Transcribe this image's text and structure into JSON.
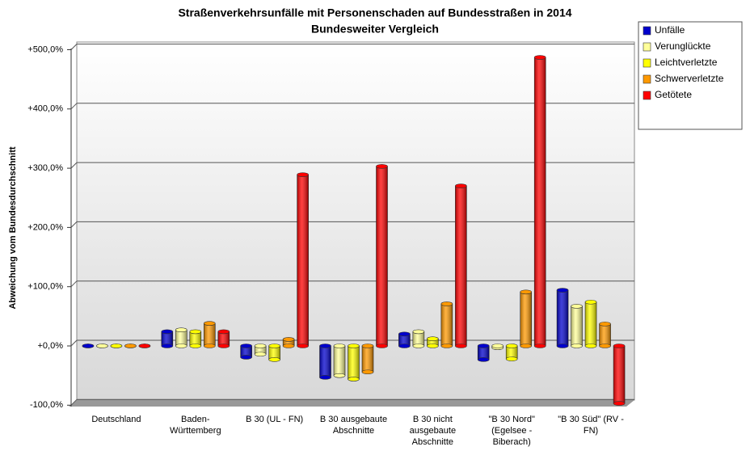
{
  "chart_data": {
    "type": "bar",
    "title": "Straßenverkehrsunfälle mit Personenschaden auf Bundesstraßen in 2014",
    "subtitle": "Bundesweiter Vergleich",
    "y_label": "Abweichung vom Bundesdurchschnitt",
    "categories": [
      "Deutschland",
      "Baden-\nWürttemberg",
      "B 30 (UL - FN)",
      "B 30 ausgebaute\nAbschnitte",
      "B 30 nicht\nausgebaute\nAbschnitte",
      "\"B 30 Nord\"\n(Egelsee -\nBiberach)",
      "\"B 30 Süd\" (RV -\nFN)"
    ],
    "series": [
      {
        "name": "Unfälle",
        "color": "#0000cc",
        "values": [
          0,
          24,
          -19,
          -53,
          20,
          -23,
          94
        ]
      },
      {
        "name": "Verunglückte",
        "color": "#ffff99",
        "values": [
          0,
          27,
          -14,
          -50,
          24,
          -3,
          67
        ]
      },
      {
        "name": "Leichtverletzte",
        "color": "#ffff00",
        "values": [
          0,
          24,
          -23,
          -56,
          12,
          -22,
          74
        ]
      },
      {
        "name": "Schwerverletzte",
        "color": "#ff9900",
        "values": [
          0,
          38,
          11,
          -44,
          71,
          91,
          37
        ]
      },
      {
        "name": "Getötete",
        "color": "#ff0000",
        "values": [
          0,
          24,
          289,
          303,
          270,
          487,
          -97
        ]
      }
    ],
    "ylim": [
      -100,
      500
    ],
    "yticks": [
      {
        "value": -100,
        "label": "-100,0%"
      },
      {
        "value": 0,
        "label": "+0,0%"
      },
      {
        "value": 100,
        "label": "+100,0%"
      },
      {
        "value": 200,
        "label": "+200,0%"
      },
      {
        "value": 300,
        "label": "+300,0%"
      },
      {
        "value": 400,
        "label": "+400,0%"
      },
      {
        "value": 500,
        "label": "+500,0%"
      }
    ],
    "grid": true
  }
}
